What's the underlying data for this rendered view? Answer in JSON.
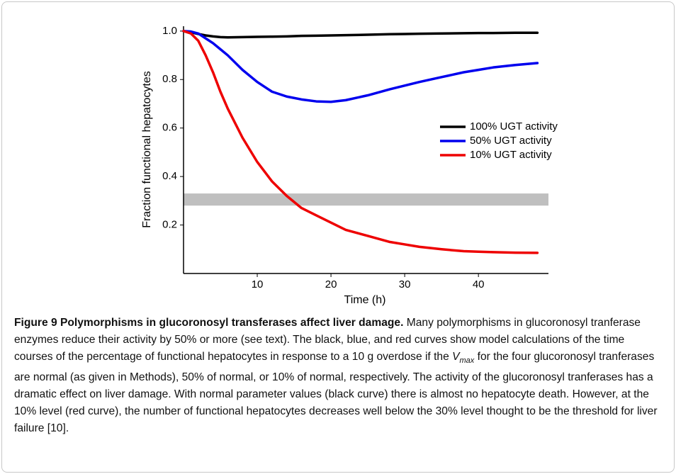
{
  "chart_data": {
    "type": "line",
    "xlabel": "Time (h)",
    "ylabel": "Fraction functional hepatocytes",
    "x": [
      0,
      1,
      2,
      3,
      4,
      5,
      6,
      8,
      10,
      12,
      14,
      16,
      18,
      20,
      22,
      25,
      28,
      30,
      32,
      35,
      38,
      40,
      42,
      45,
      48
    ],
    "series": [
      {
        "name": "100% UGT activity",
        "color": "#000000",
        "values": [
          1.0,
          0.995,
          0.988,
          0.982,
          0.978,
          0.975,
          0.974,
          0.975,
          0.976,
          0.977,
          0.978,
          0.98,
          0.981,
          0.982,
          0.983,
          0.985,
          0.987,
          0.988,
          0.989,
          0.99,
          0.991,
          0.992,
          0.992,
          0.993,
          0.993
        ]
      },
      {
        "name": "50% UGT activity",
        "color": "#0000ee",
        "values": [
          1.0,
          0.998,
          0.99,
          0.97,
          0.95,
          0.925,
          0.9,
          0.84,
          0.79,
          0.75,
          0.73,
          0.718,
          0.71,
          0.708,
          0.715,
          0.735,
          0.76,
          0.775,
          0.79,
          0.81,
          0.83,
          0.84,
          0.85,
          0.86,
          0.868
        ]
      },
      {
        "name": "10% UGT activity",
        "color": "#ee0000",
        "values": [
          1.0,
          0.99,
          0.96,
          0.9,
          0.83,
          0.75,
          0.68,
          0.56,
          0.46,
          0.38,
          0.32,
          0.27,
          0.24,
          0.21,
          0.18,
          0.155,
          0.13,
          0.12,
          0.11,
          0.1,
          0.092,
          0.09,
          0.088,
          0.086,
          0.085
        ]
      }
    ],
    "band": [
      0.28,
      0.33
    ],
    "band_color": "#bfbfbf",
    "xlim": [
      0,
      49.5
    ],
    "ylim": [
      0,
      1.02
    ],
    "xticks": [
      10,
      20,
      30,
      40
    ],
    "yticks": [
      0.2,
      0.4,
      0.6,
      0.8,
      {
        "value": 1,
        "label": "1.0"
      }
    ],
    "grid": false,
    "legend": "right"
  },
  "caption": {
    "title": "Figure 9 Polymorphisms in glucoronosyl transferases affect liver damage.",
    "body_1": " Many polymorphisms in glucoronosyl tranferase enzymes reduce their activity by 50% or more (see text). The black, blue, and red curves show model calculations of the time courses of the percentage of functional hepatocytes in response to a 10 g overdose if the ",
    "var": "V",
    "var_sub": "max",
    "body_2": " for the four glucoronosyl tranferases are normal (as given in Methods), 50% of normal, or 10% of normal, respectively. The activity of the glucoronosyl tranferases has a dramatic effect on liver damage. With normal parameter values (black curve) there is almost no hepatocyte death. However, at the 10% level (red curve), the number of functional hepatocytes decreases well below the 30% level thought to be the threshold for liver failure [10]."
  }
}
